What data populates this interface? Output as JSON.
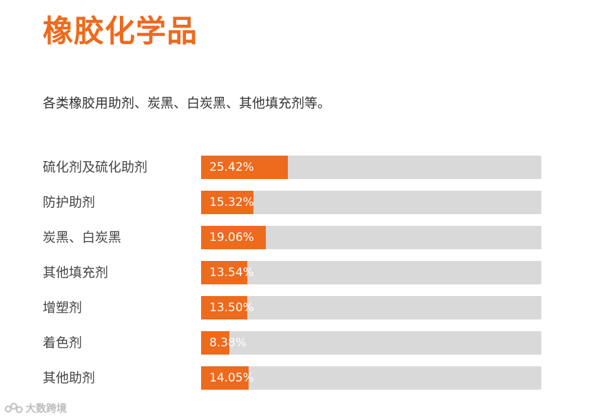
{
  "header": {
    "title": "橡胶化学品"
  },
  "description": "各类橡胶用助剂、炭黑、白炭黑、其他填充剂等。",
  "watermark": {
    "text": "大数跨境",
    "icon": "brand-logo-icon"
  },
  "colors": {
    "accent": "#ee6a1c",
    "track": "#d9d9d9",
    "value_text": "#ffffff"
  },
  "chart_data": {
    "type": "bar",
    "orientation": "horizontal",
    "categories": [
      "硫化剂及硫化助剂",
      "防护助剂",
      "炭黑、白炭黑",
      "其他填充剂",
      "增塑剂",
      "着色剂",
      "其他助剂"
    ],
    "values": [
      25.42,
      15.32,
      19.06,
      13.54,
      13.5,
      8.38,
      14.05
    ],
    "value_labels": [
      "25.42%",
      "15.32%",
      "19.06%",
      "13.54%",
      "13.50%",
      "8.38%",
      "14.05%"
    ],
    "xlim": [
      0,
      100
    ],
    "unit": "%",
    "grid": false,
    "legend": "none"
  }
}
